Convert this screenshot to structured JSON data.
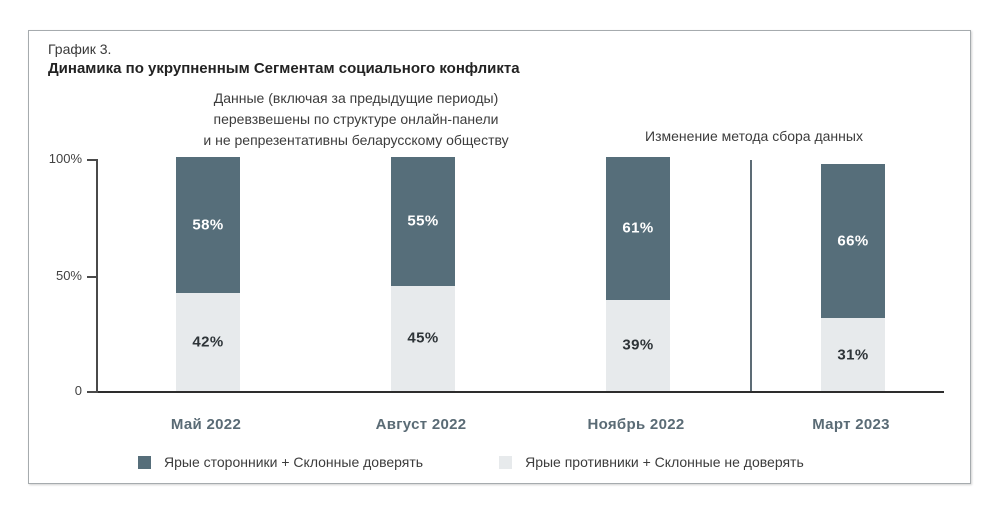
{
  "header": {
    "kicker": "График 3.",
    "title": "Динамика по укрупненным Сегментам социального конфликта"
  },
  "notes": {
    "weighting": [
      "Данные (включая за предыдущие периоды)",
      "перевзвешены по структуре онлайн-панели",
      "и не репрезентативны беларусскому обществу"
    ],
    "method_change": "Изменение метода сбора данных"
  },
  "chart_data": {
    "type": "bar",
    "stacked": true,
    "title": "Динамика по укрупненным Сегментам социального конфликта",
    "categories": [
      "Май 2022",
      "Август 2022",
      "Ноябрь 2022",
      "Март 2023"
    ],
    "series": [
      {
        "name": "Ярые сторонники + Склонные доверять",
        "color": "#566E7A",
        "label_color": "#FFFFFF",
        "values": [
          58,
          55,
          61,
          66
        ]
      },
      {
        "name": "Ярые противники + Склонные не доверять",
        "color": "#E7EAEC",
        "label_color": "#2E3438",
        "values": [
          42,
          45,
          39,
          31
        ]
      }
    ],
    "value_suffix": "%",
    "ylim": [
      0,
      100
    ],
    "y_ticks": [
      {
        "label": "100%",
        "value": 100
      },
      {
        "label": "50%",
        "value": 50
      },
      {
        "label": "0",
        "value": 0
      }
    ],
    "grid": false,
    "legend_position": "bottom",
    "separator_between": [
      "Ноябрь 2022",
      "Март 2023"
    ],
    "separator_note": "Изменение метода сбора данных"
  }
}
